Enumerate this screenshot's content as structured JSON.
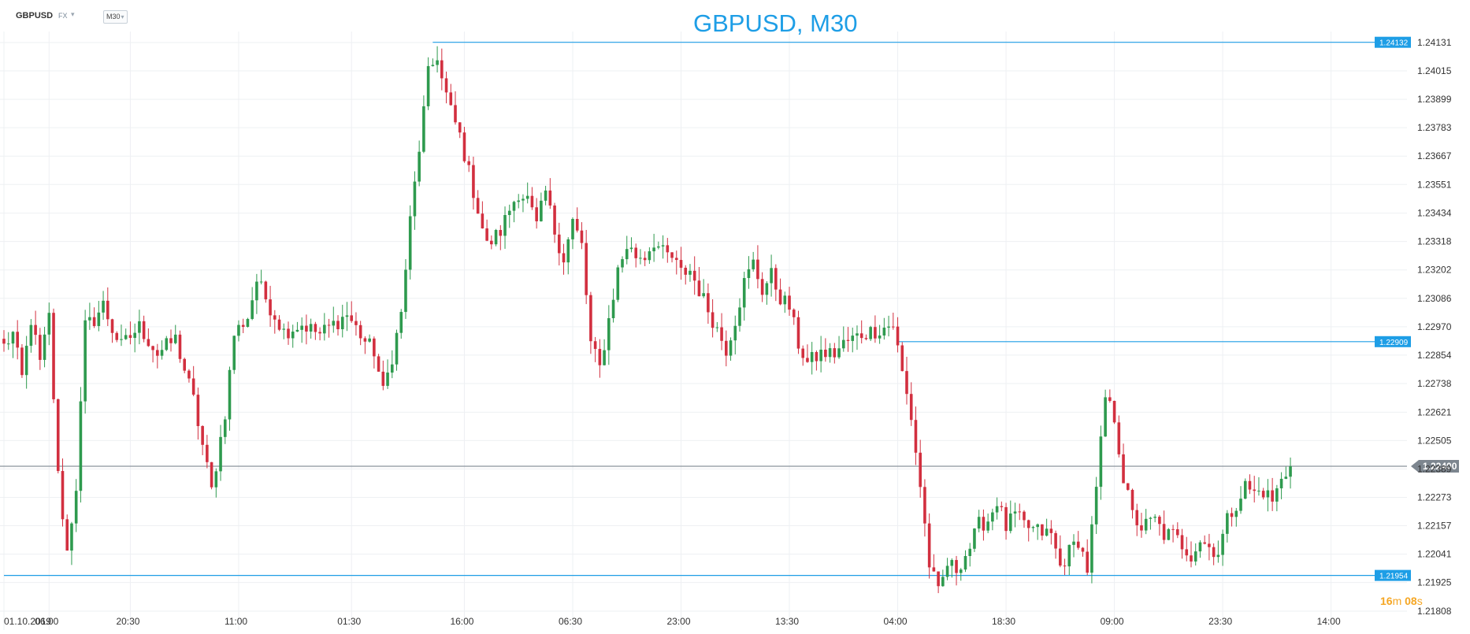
{
  "toolbar": {
    "symbol": "GBPUSD",
    "market": "FX",
    "market_arrow": "chevron-down-icon",
    "timeframe": "M30",
    "timeframe_arrow": "chevron-down-icon"
  },
  "countdown": {
    "minutes": "16",
    "minutes_unit": "m",
    "seconds": "08",
    "seconds_unit": "s"
  },
  "colors": {
    "bull": "#2e9a4e",
    "bear": "#d22f3f",
    "accent": "#1e9ee6",
    "current": "#8a939c",
    "countdown": "#f5a623"
  },
  "chart_data": {
    "type": "candlestick",
    "title": "GBPUSD, M30",
    "ylim": [
      1.21808,
      1.24131
    ],
    "yticks": [
      "1.24131",
      "1.24015",
      "1.23899",
      "1.23783",
      "1.23667",
      "1.23551",
      "1.23434",
      "1.23318",
      "1.23202",
      "1.23086",
      "1.22970",
      "1.22854",
      "1.22738",
      "1.22621",
      "1.22505",
      "1.22389",
      "1.22273",
      "1.22157",
      "1.22041",
      "1.21925",
      "1.21808"
    ],
    "xticks": [
      "01.10.2019",
      "06:00",
      "20:30",
      "11:00",
      "01:30",
      "16:00",
      "06:30",
      "23:00",
      "13:30",
      "04:00",
      "18:30",
      "09:00",
      "23:30",
      "14:00"
    ],
    "xtick_index": [
      0,
      10,
      28,
      52,
      77,
      102,
      126,
      150,
      174,
      198,
      222,
      246,
      270,
      294
    ],
    "grid": true,
    "hlines": [
      {
        "price": 1.24132,
        "label": "1.24132",
        "start_index": 95
      },
      {
        "price": 1.22909,
        "label": "1.22909",
        "start_index": 198
      },
      {
        "price": 1.21954,
        "label": "1.21954",
        "start_index": 0
      }
    ],
    "current": {
      "price": 1.224,
      "label": "1.22400"
    },
    "pivots": [
      [
        0,
        1.2289
      ],
      [
        2,
        1.2294
      ],
      [
        4,
        1.2276
      ],
      [
        6,
        1.23
      ],
      [
        8,
        1.2282
      ],
      [
        10,
        1.2301
      ],
      [
        12,
        1.2236
      ],
      [
        14,
        1.2205
      ],
      [
        16,
        1.2232
      ],
      [
        18,
        1.2297
      ],
      [
        20,
        1.23
      ],
      [
        22,
        1.2306
      ],
      [
        24,
        1.2296
      ],
      [
        26,
        1.2289
      ],
      [
        30,
        1.2297
      ],
      [
        34,
        1.2286
      ],
      [
        38,
        1.2292
      ],
      [
        42,
        1.2267
      ],
      [
        46,
        1.223
      ],
      [
        49,
        1.2262
      ],
      [
        51,
        1.2294
      ],
      [
        54,
        1.2301
      ],
      [
        56,
        1.2316
      ],
      [
        59,
        1.2305
      ],
      [
        62,
        1.2295
      ],
      [
        66,
        1.2298
      ],
      [
        70,
        1.2294
      ],
      [
        76,
        1.2302
      ],
      [
        80,
        1.2291
      ],
      [
        82,
        1.2287
      ],
      [
        84,
        1.227
      ],
      [
        86,
        1.2285
      ],
      [
        88,
        1.2302
      ],
      [
        90,
        1.234
      ],
      [
        92,
        1.237
      ],
      [
        94,
        1.24
      ],
      [
        96,
        1.2408
      ],
      [
        97,
        1.2398
      ],
      [
        99,
        1.2385
      ],
      [
        101,
        1.2375
      ],
      [
        103,
        1.236
      ],
      [
        105,
        1.2345
      ],
      [
        107,
        1.233
      ],
      [
        110,
        1.2336
      ],
      [
        112,
        1.2345
      ],
      [
        114,
        1.2352
      ],
      [
        116,
        1.2349
      ],
      [
        118,
        1.2338
      ],
      [
        120,
        1.2352
      ],
      [
        122,
        1.2336
      ],
      [
        124,
        1.2325
      ],
      [
        126,
        1.234
      ],
      [
        128,
        1.233
      ],
      [
        130,
        1.229
      ],
      [
        132,
        1.228
      ],
      [
        134,
        1.23
      ],
      [
        136,
        1.232
      ],
      [
        138,
        1.233
      ],
      [
        140,
        1.2326
      ],
      [
        142,
        1.2326
      ],
      [
        144,
        1.2332
      ],
      [
        146,
        1.2327
      ],
      [
        148,
        1.2325
      ],
      [
        150,
        1.2319
      ],
      [
        152,
        1.232
      ],
      [
        154,
        1.2312
      ],
      [
        157,
        1.23
      ],
      [
        160,
        1.2288
      ],
      [
        162,
        1.23
      ],
      [
        164,
        1.2315
      ],
      [
        166,
        1.2323
      ],
      [
        168,
        1.2312
      ],
      [
        170,
        1.2318
      ],
      [
        172,
        1.2309
      ],
      [
        174,
        1.2305
      ],
      [
        176,
        1.229
      ],
      [
        178,
        1.2282
      ],
      [
        181,
        1.2286
      ],
      [
        184,
        1.2286
      ],
      [
        186,
        1.229
      ],
      [
        190,
        1.2294
      ],
      [
        194,
        1.2296
      ],
      [
        197,
        1.2298
      ],
      [
        199,
        1.2278
      ],
      [
        201,
        1.226
      ],
      [
        203,
        1.2232
      ],
      [
        205,
        1.22
      ],
      [
        207,
        1.2188
      ],
      [
        209,
        1.22
      ],
      [
        211,
        1.2198
      ],
      [
        214,
        1.2207
      ],
      [
        216,
        1.2216
      ],
      [
        218,
        1.2218
      ],
      [
        220,
        1.2226
      ],
      [
        222,
        1.2215
      ],
      [
        224,
        1.222
      ],
      [
        226,
        1.2216
      ],
      [
        228,
        1.2214
      ],
      [
        232,
        1.2212
      ],
      [
        234,
        1.2199
      ],
      [
        236,
        1.2205
      ],
      [
        238,
        1.221
      ],
      [
        240,
        1.2198
      ],
      [
        242,
        1.223
      ],
      [
        244,
        1.2268
      ],
      [
        246,
        1.226
      ],
      [
        248,
        1.2235
      ],
      [
        250,
        1.222
      ],
      [
        252,
        1.2215
      ],
      [
        255,
        1.2218
      ],
      [
        257,
        1.2212
      ],
      [
        259,
        1.2212
      ],
      [
        261,
        1.2208
      ],
      [
        263,
        1.2204
      ],
      [
        265,
        1.221
      ],
      [
        267,
        1.2207
      ],
      [
        269,
        1.2205
      ],
      [
        271,
        1.2218
      ],
      [
        273,
        1.2225
      ],
      [
        275,
        1.2232
      ],
      [
        277,
        1.2229
      ],
      [
        279,
        1.223
      ],
      [
        281,
        1.2226
      ],
      [
        283,
        1.2234
      ],
      [
        285,
        1.224
      ]
    ],
    "n_candles": 286
  }
}
